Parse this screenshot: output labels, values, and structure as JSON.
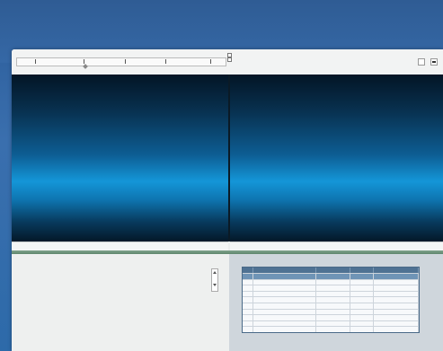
{
  "window": {
    "toolbar": {
      "timeline_title": "",
      "timeline_tick_count": 5,
      "options": [
        "",
        ""
      ],
      "zoom_lines": [
        "",
        ""
      ]
    },
    "viewports": {
      "left_label": "",
      "right_label": ""
    },
    "colors": {
      "desktop": "#2e5f9c",
      "splitter": "#6f9379",
      "table_header": "#4f7293",
      "table_selected_row": "#6f94b6"
    }
  },
  "properties": {
    "rows": [
      {
        "label": "",
        "value": ""
      },
      {
        "label": "",
        "value": ""
      },
      {
        "label": "",
        "value": ""
      },
      {
        "label": "",
        "value": ""
      },
      {
        "label": "",
        "value": ""
      },
      {
        "label": "",
        "value": ""
      },
      {
        "label": "",
        "value": ""
      },
      {
        "label": "",
        "value": ""
      },
      {
        "label": "",
        "value": ""
      }
    ],
    "count": ""
  },
  "table": {
    "columns": [
      "",
      "",
      "",
      "",
      ""
    ],
    "rows": [
      [
        "",
        "",
        "",
        "",
        ""
      ],
      [
        "",
        "",
        "",
        "",
        ""
      ],
      [
        "",
        "",
        "",
        "",
        ""
      ],
      [
        "",
        "",
        "",
        "",
        ""
      ],
      [
        "",
        "",
        "",
        "",
        ""
      ],
      [
        "",
        "",
        "",
        "",
        ""
      ],
      [
        "",
        "",
        "",
        "",
        ""
      ],
      [
        "",
        "",
        "",
        "",
        ""
      ],
      [
        "",
        "",
        "",
        "",
        ""
      ],
      [
        "",
        "",
        "",
        "",
        ""
      ]
    ],
    "selected_row": 0
  }
}
